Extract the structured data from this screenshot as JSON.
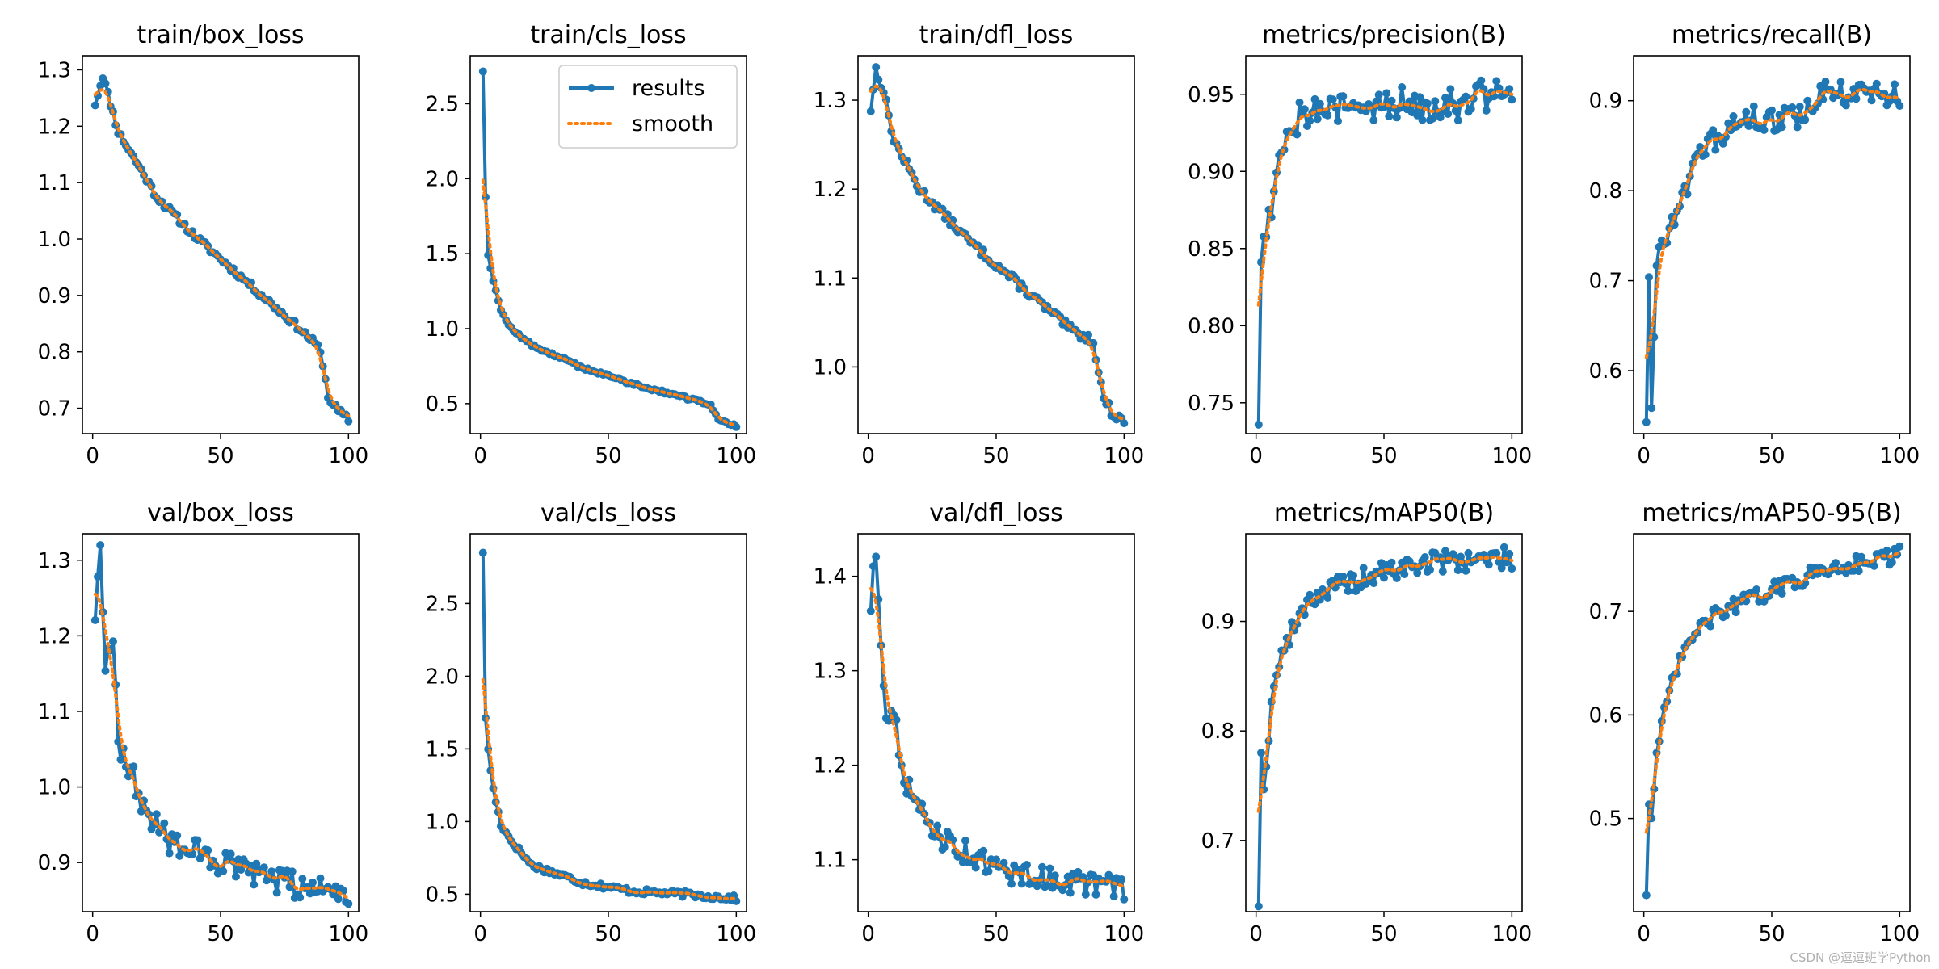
{
  "figure": {
    "watermark": "CSDN @逗逗班学Python",
    "colors": {
      "results": "#1f77b4",
      "smooth": "#ff7f0e",
      "axes": "#000000",
      "background": "#ffffff"
    }
  },
  "chart_data": [
    {
      "type": "line",
      "title": "train/box_loss",
      "xlim": [
        -4,
        104
      ],
      "ylim": [
        0.655,
        1.325
      ],
      "xticks": [
        0,
        50,
        100
      ],
      "yticks": [
        0.7,
        0.8,
        0.9,
        1.0,
        1.1,
        1.2,
        1.3
      ],
      "ytick_labels": [
        "0.7",
        "0.8",
        "0.9",
        "1.0",
        "1.1",
        "1.2",
        "1.3"
      ],
      "legend": null,
      "x_range": [
        1,
        100
      ],
      "results": [
        [
          1,
          1.24
        ],
        [
          4,
          1.29
        ],
        [
          10,
          1.19
        ],
        [
          18,
          1.13
        ],
        [
          25,
          1.075
        ],
        [
          40,
          1.005
        ],
        [
          60,
          0.925
        ],
        [
          80,
          0.845
        ],
        [
          88,
          0.81
        ],
        [
          90,
          0.78
        ],
        [
          92,
          0.72
        ],
        [
          96,
          0.695
        ],
        [
          100,
          0.68
        ]
      ],
      "noise": 0.006,
      "seed": 11
    },
    {
      "type": "line",
      "title": "train/cls_loss",
      "xlim": [
        -4,
        104
      ],
      "ylim": [
        0.3,
        2.82
      ],
      "xticks": [
        0,
        50,
        100
      ],
      "yticks": [
        0.5,
        1.0,
        1.5,
        2.0,
        2.5
      ],
      "ytick_labels": [
        "0.5",
        "1.0",
        "1.5",
        "2.0",
        "2.5"
      ],
      "legend": {
        "position": "upper-right",
        "entries": [
          "results",
          "smooth"
        ]
      },
      "x_range": [
        1,
        100
      ],
      "results": [
        [
          1,
          2.72
        ],
        [
          2,
          1.88
        ],
        [
          3,
          1.5
        ],
        [
          5,
          1.32
        ],
        [
          8,
          1.12
        ],
        [
          12,
          1.0
        ],
        [
          20,
          0.89
        ],
        [
          40,
          0.74
        ],
        [
          60,
          0.63
        ],
        [
          80,
          0.54
        ],
        [
          90,
          0.49
        ],
        [
          93,
          0.4
        ],
        [
          100,
          0.35
        ]
      ],
      "noise": 0.01,
      "seed": 12
    },
    {
      "type": "line",
      "title": "train/dfl_loss",
      "xlim": [
        -4,
        104
      ],
      "ylim": [
        0.925,
        1.35
      ],
      "xticks": [
        0,
        50,
        100
      ],
      "yticks": [
        1.0,
        1.1,
        1.2,
        1.3
      ],
      "ytick_labels": [
        "1.0",
        "1.1",
        "1.2",
        "1.3"
      ],
      "legend": null,
      "x_range": [
        1,
        100
      ],
      "results": [
        [
          1,
          1.29
        ],
        [
          3,
          1.335
        ],
        [
          6,
          1.31
        ],
        [
          10,
          1.255
        ],
        [
          20,
          1.2
        ],
        [
          40,
          1.14
        ],
        [
          60,
          1.09
        ],
        [
          80,
          1.04
        ],
        [
          88,
          1.03
        ],
        [
          90,
          0.995
        ],
        [
          92,
          0.965
        ],
        [
          96,
          0.945
        ],
        [
          100,
          0.94
        ]
      ],
      "noise": 0.005,
      "seed": 13
    },
    {
      "type": "line",
      "title": "metrics/precision(B)",
      "xlim": [
        -4,
        104
      ],
      "ylim": [
        0.73,
        0.975
      ],
      "xticks": [
        0,
        50,
        100
      ],
      "yticks": [
        0.75,
        0.8,
        0.85,
        0.9,
        0.95
      ],
      "ytick_labels": [
        "0.75",
        "0.80",
        "0.85",
        "0.90",
        "0.95"
      ],
      "legend": null,
      "x_range": [
        1,
        100
      ],
      "results": [
        [
          1,
          0.742
        ],
        [
          2,
          0.84
        ],
        [
          3,
          0.86
        ],
        [
          5,
          0.87
        ],
        [
          8,
          0.9
        ],
        [
          12,
          0.93
        ],
        [
          20,
          0.94
        ],
        [
          40,
          0.94
        ],
        [
          60,
          0.945
        ],
        [
          80,
          0.945
        ],
        [
          100,
          0.955
        ]
      ],
      "noise": 0.012,
      "seed": 14
    },
    {
      "type": "line",
      "title": "metrics/recall(B)",
      "xlim": [
        -4,
        104
      ],
      "ylim": [
        0.53,
        0.95
      ],
      "xticks": [
        0,
        50,
        100
      ],
      "yticks": [
        0.6,
        0.7,
        0.8,
        0.9
      ],
      "ytick_labels": [
        "0.6",
        "0.7",
        "0.8",
        "0.9"
      ],
      "legend": null,
      "x_range": [
        1,
        100
      ],
      "results": [
        [
          1,
          0.55
        ],
        [
          2,
          0.7
        ],
        [
          3,
          0.57
        ],
        [
          5,
          0.72
        ],
        [
          10,
          0.76
        ],
        [
          15,
          0.8
        ],
        [
          25,
          0.85
        ],
        [
          40,
          0.88
        ],
        [
          60,
          0.88
        ],
        [
          70,
          0.91
        ],
        [
          100,
          0.905
        ]
      ],
      "noise": 0.014,
      "seed": 15
    },
    {
      "type": "line",
      "title": "val/box_loss",
      "xlim": [
        -4,
        104
      ],
      "ylim": [
        0.835,
        1.335
      ],
      "xticks": [
        0,
        50,
        100
      ],
      "yticks": [
        0.9,
        1.0,
        1.1,
        1.2,
        1.3
      ],
      "ytick_labels": [
        "0.9",
        "1.0",
        "1.1",
        "1.2",
        "1.3"
      ],
      "legend": null,
      "x_range": [
        1,
        100
      ],
      "results": [
        [
          1,
          1.23
        ],
        [
          3,
          1.31
        ],
        [
          5,
          1.17
        ],
        [
          8,
          1.2
        ],
        [
          10,
          1.06
        ],
        [
          15,
          1.02
        ],
        [
          20,
          0.97
        ],
        [
          30,
          0.93
        ],
        [
          50,
          0.9
        ],
        [
          70,
          0.875
        ],
        [
          100,
          0.86
        ]
      ],
      "noise": 0.018,
      "seed": 16
    },
    {
      "type": "line",
      "title": "val/cls_loss",
      "xlim": [
        -4,
        104
      ],
      "ylim": [
        0.38,
        2.98
      ],
      "xticks": [
        0,
        50,
        100
      ],
      "yticks": [
        0.5,
        1.0,
        1.5,
        2.0,
        2.5
      ],
      "ytick_labels": [
        "0.5",
        "1.0",
        "1.5",
        "2.0",
        "2.5"
      ],
      "legend": null,
      "x_range": [
        1,
        100
      ],
      "results": [
        [
          1,
          2.86
        ],
        [
          2,
          1.7
        ],
        [
          3,
          1.5
        ],
        [
          5,
          1.22
        ],
        [
          8,
          0.98
        ],
        [
          12,
          0.87
        ],
        [
          20,
          0.7
        ],
        [
          40,
          0.58
        ],
        [
          60,
          0.52
        ],
        [
          80,
          0.5
        ],
        [
          100,
          0.47
        ]
      ],
      "noise": 0.02,
      "seed": 17
    },
    {
      "type": "line",
      "title": "val/dfl_loss",
      "xlim": [
        -4,
        104
      ],
      "ylim": [
        1.045,
        1.445
      ],
      "xticks": [
        0,
        50,
        100
      ],
      "yticks": [
        1.1,
        1.2,
        1.3,
        1.4
      ],
      "ytick_labels": [
        "1.1",
        "1.2",
        "1.3",
        "1.4"
      ],
      "legend": null,
      "x_range": [
        1,
        100
      ],
      "results": [
        [
          1,
          1.37
        ],
        [
          3,
          1.43
        ],
        [
          5,
          1.33
        ],
        [
          7,
          1.26
        ],
        [
          10,
          1.25
        ],
        [
          15,
          1.18
        ],
        [
          20,
          1.15
        ],
        [
          30,
          1.12
        ],
        [
          50,
          1.09
        ],
        [
          70,
          1.08
        ],
        [
          100,
          1.07
        ]
      ],
      "noise": 0.013,
      "seed": 18
    },
    {
      "type": "line",
      "title": "metrics/mAP50(B)",
      "xlim": [
        -4,
        104
      ],
      "ylim": [
        0.635,
        0.98
      ],
      "xticks": [
        0,
        50,
        100
      ],
      "yticks": [
        0.7,
        0.8,
        0.9
      ],
      "ytick_labels": [
        "0.7",
        "0.8",
        "0.9"
      ],
      "legend": null,
      "x_range": [
        1,
        100
      ],
      "results": [
        [
          1,
          0.645
        ],
        [
          2,
          0.79
        ],
        [
          3,
          0.74
        ],
        [
          5,
          0.8
        ],
        [
          8,
          0.86
        ],
        [
          12,
          0.88
        ],
        [
          20,
          0.92
        ],
        [
          30,
          0.93
        ],
        [
          50,
          0.945
        ],
        [
          70,
          0.955
        ],
        [
          100,
          0.958
        ]
      ],
      "noise": 0.01,
      "seed": 19
    },
    {
      "type": "line",
      "title": "metrics/mAP50-95(B)",
      "xlim": [
        -4,
        104
      ],
      "ylim": [
        0.41,
        0.775
      ],
      "xticks": [
        0,
        50,
        100
      ],
      "yticks": [
        0.5,
        0.6,
        0.7
      ],
      "ytick_labels": [
        "0.5",
        "0.6",
        "0.7"
      ],
      "legend": null,
      "x_range": [
        1,
        100
      ],
      "results": [
        [
          1,
          0.43
        ],
        [
          2,
          0.52
        ],
        [
          3,
          0.5
        ],
        [
          5,
          0.56
        ],
        [
          8,
          0.6
        ],
        [
          12,
          0.64
        ],
        [
          20,
          0.68
        ],
        [
          30,
          0.7
        ],
        [
          50,
          0.72
        ],
        [
          70,
          0.74
        ],
        [
          100,
          0.755
        ]
      ],
      "noise": 0.008,
      "seed": 20
    }
  ]
}
